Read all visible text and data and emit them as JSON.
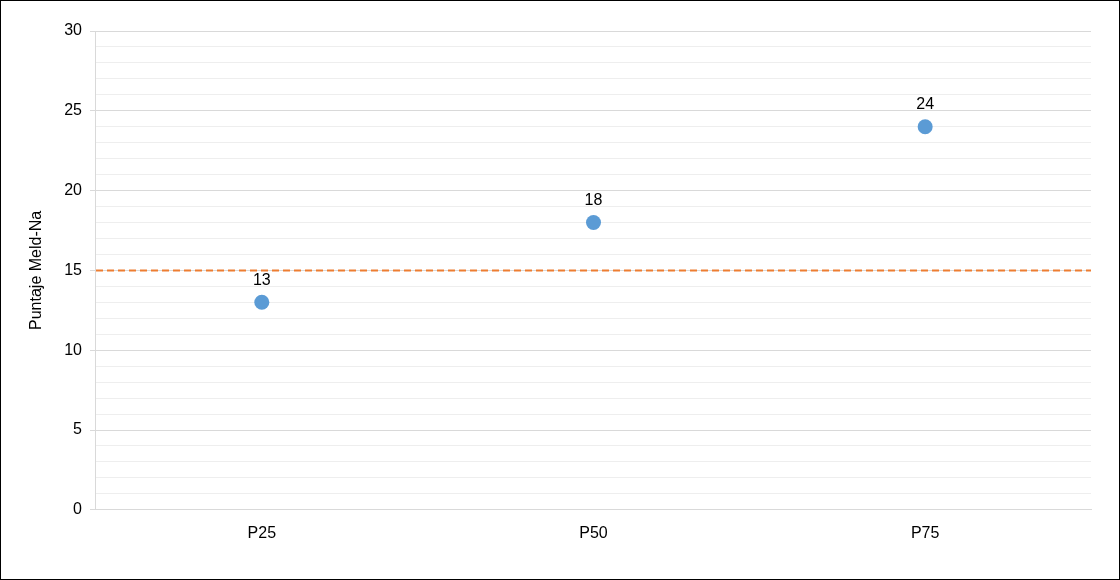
{
  "chart_data": {
    "type": "scatter",
    "categories": [
      "P25",
      "P50",
      "P75"
    ],
    "values": [
      13,
      18,
      24
    ],
    "color": "#5b9bd5",
    "marker": "circle",
    "data_labels": true,
    "ylabel": "Puntaje Meld-Na",
    "ylim": [
      0,
      30
    ],
    "yticks": [
      0,
      {
        "value": 1,
        "label": null
      },
      {
        "value": 2,
        "label": null
      },
      {
        "value": 3,
        "label": null
      },
      {
        "value": 4,
        "label": null
      },
      5,
      {
        "value": 6,
        "label": null
      },
      {
        "value": 7,
        "label": null
      },
      {
        "value": 8,
        "label": null
      },
      {
        "value": 9,
        "label": null
      },
      10,
      {
        "value": 11,
        "label": null
      },
      {
        "value": 12,
        "label": null
      },
      {
        "value": 13,
        "label": null
      },
      {
        "value": 14,
        "label": null
      },
      15,
      {
        "value": 16,
        "label": null
      },
      {
        "value": 17,
        "label": null
      },
      {
        "value": 18,
        "label": null
      },
      {
        "value": 19,
        "label": null
      },
      20,
      {
        "value": 21,
        "label": null
      },
      {
        "value": 22,
        "label": null
      },
      {
        "value": 23,
        "label": null
      },
      {
        "value": 24,
        "label": null
      },
      25,
      {
        "value": 26,
        "label": null
      },
      {
        "value": 27,
        "label": null
      },
      {
        "value": 28,
        "label": null
      },
      {
        "value": 29,
        "label": null
      },
      30
    ],
    "grid": "y",
    "ref_lines": [
      {
        "axis": "y",
        "value": 15,
        "color": "#ed7d31",
        "line_style": "dashed"
      }
    ]
  }
}
